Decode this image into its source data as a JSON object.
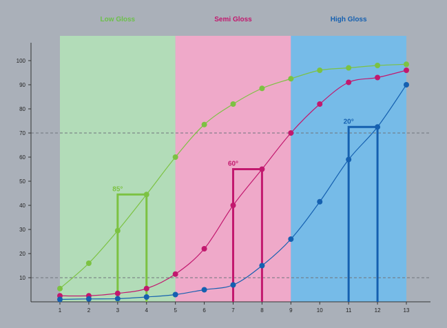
{
  "chart_data": {
    "type": "line",
    "title": "",
    "xlabel": "",
    "ylabel": "",
    "x": [
      1,
      2,
      3,
      4,
      5,
      6,
      7,
      8,
      9,
      10,
      11,
      12,
      13
    ],
    "xlim": [
      0,
      13.8
    ],
    "ylim": [
      0,
      100
    ],
    "y_ticks": [
      10,
      20,
      30,
      40,
      50,
      60,
      70,
      80,
      90,
      100
    ],
    "reference_lines": [
      10,
      70
    ],
    "zones": [
      {
        "label": "Low Gloss",
        "from": 1,
        "to": 5,
        "fill": "#b2dcb8",
        "label_color": "#6cc04a"
      },
      {
        "label": "Semi Gloss",
        "from": 5,
        "to": 9,
        "fill": "#efa9c9",
        "label_color": "#c2186e"
      },
      {
        "label": "High Gloss",
        "from": 9,
        "to": 13,
        "fill": "#76bbe8",
        "label_color": "#1560b0"
      }
    ],
    "series": [
      {
        "color": "#7cc242",
        "values": [
          5.5,
          16,
          29.5,
          44.5,
          60,
          73.5,
          82,
          88.5,
          92.5,
          96,
          97,
          98,
          98.5
        ]
      },
      {
        "color": "#c2186e",
        "values": [
          2.5,
          2.5,
          3.5,
          5.5,
          11.5,
          22,
          40,
          55,
          70,
          82,
          91,
          93,
          96
        ]
      },
      {
        "color": "#1560b0",
        "values": [
          1,
          1.2,
          1.3,
          2,
          3,
          5,
          7,
          15,
          26,
          41.5,
          59,
          72.5,
          90
        ]
      }
    ],
    "annotations": [
      {
        "label": "85°",
        "color": "#7cc242",
        "x_from": 3,
        "x_to": 4,
        "y": 44.5
      },
      {
        "label": "60°",
        "color": "#c2186e",
        "x_from": 7,
        "x_to": 8,
        "y": 55
      },
      {
        "label": "20°",
        "color": "#1560b0",
        "x_from": 11,
        "x_to": 12,
        "y": 72.5
      }
    ]
  }
}
